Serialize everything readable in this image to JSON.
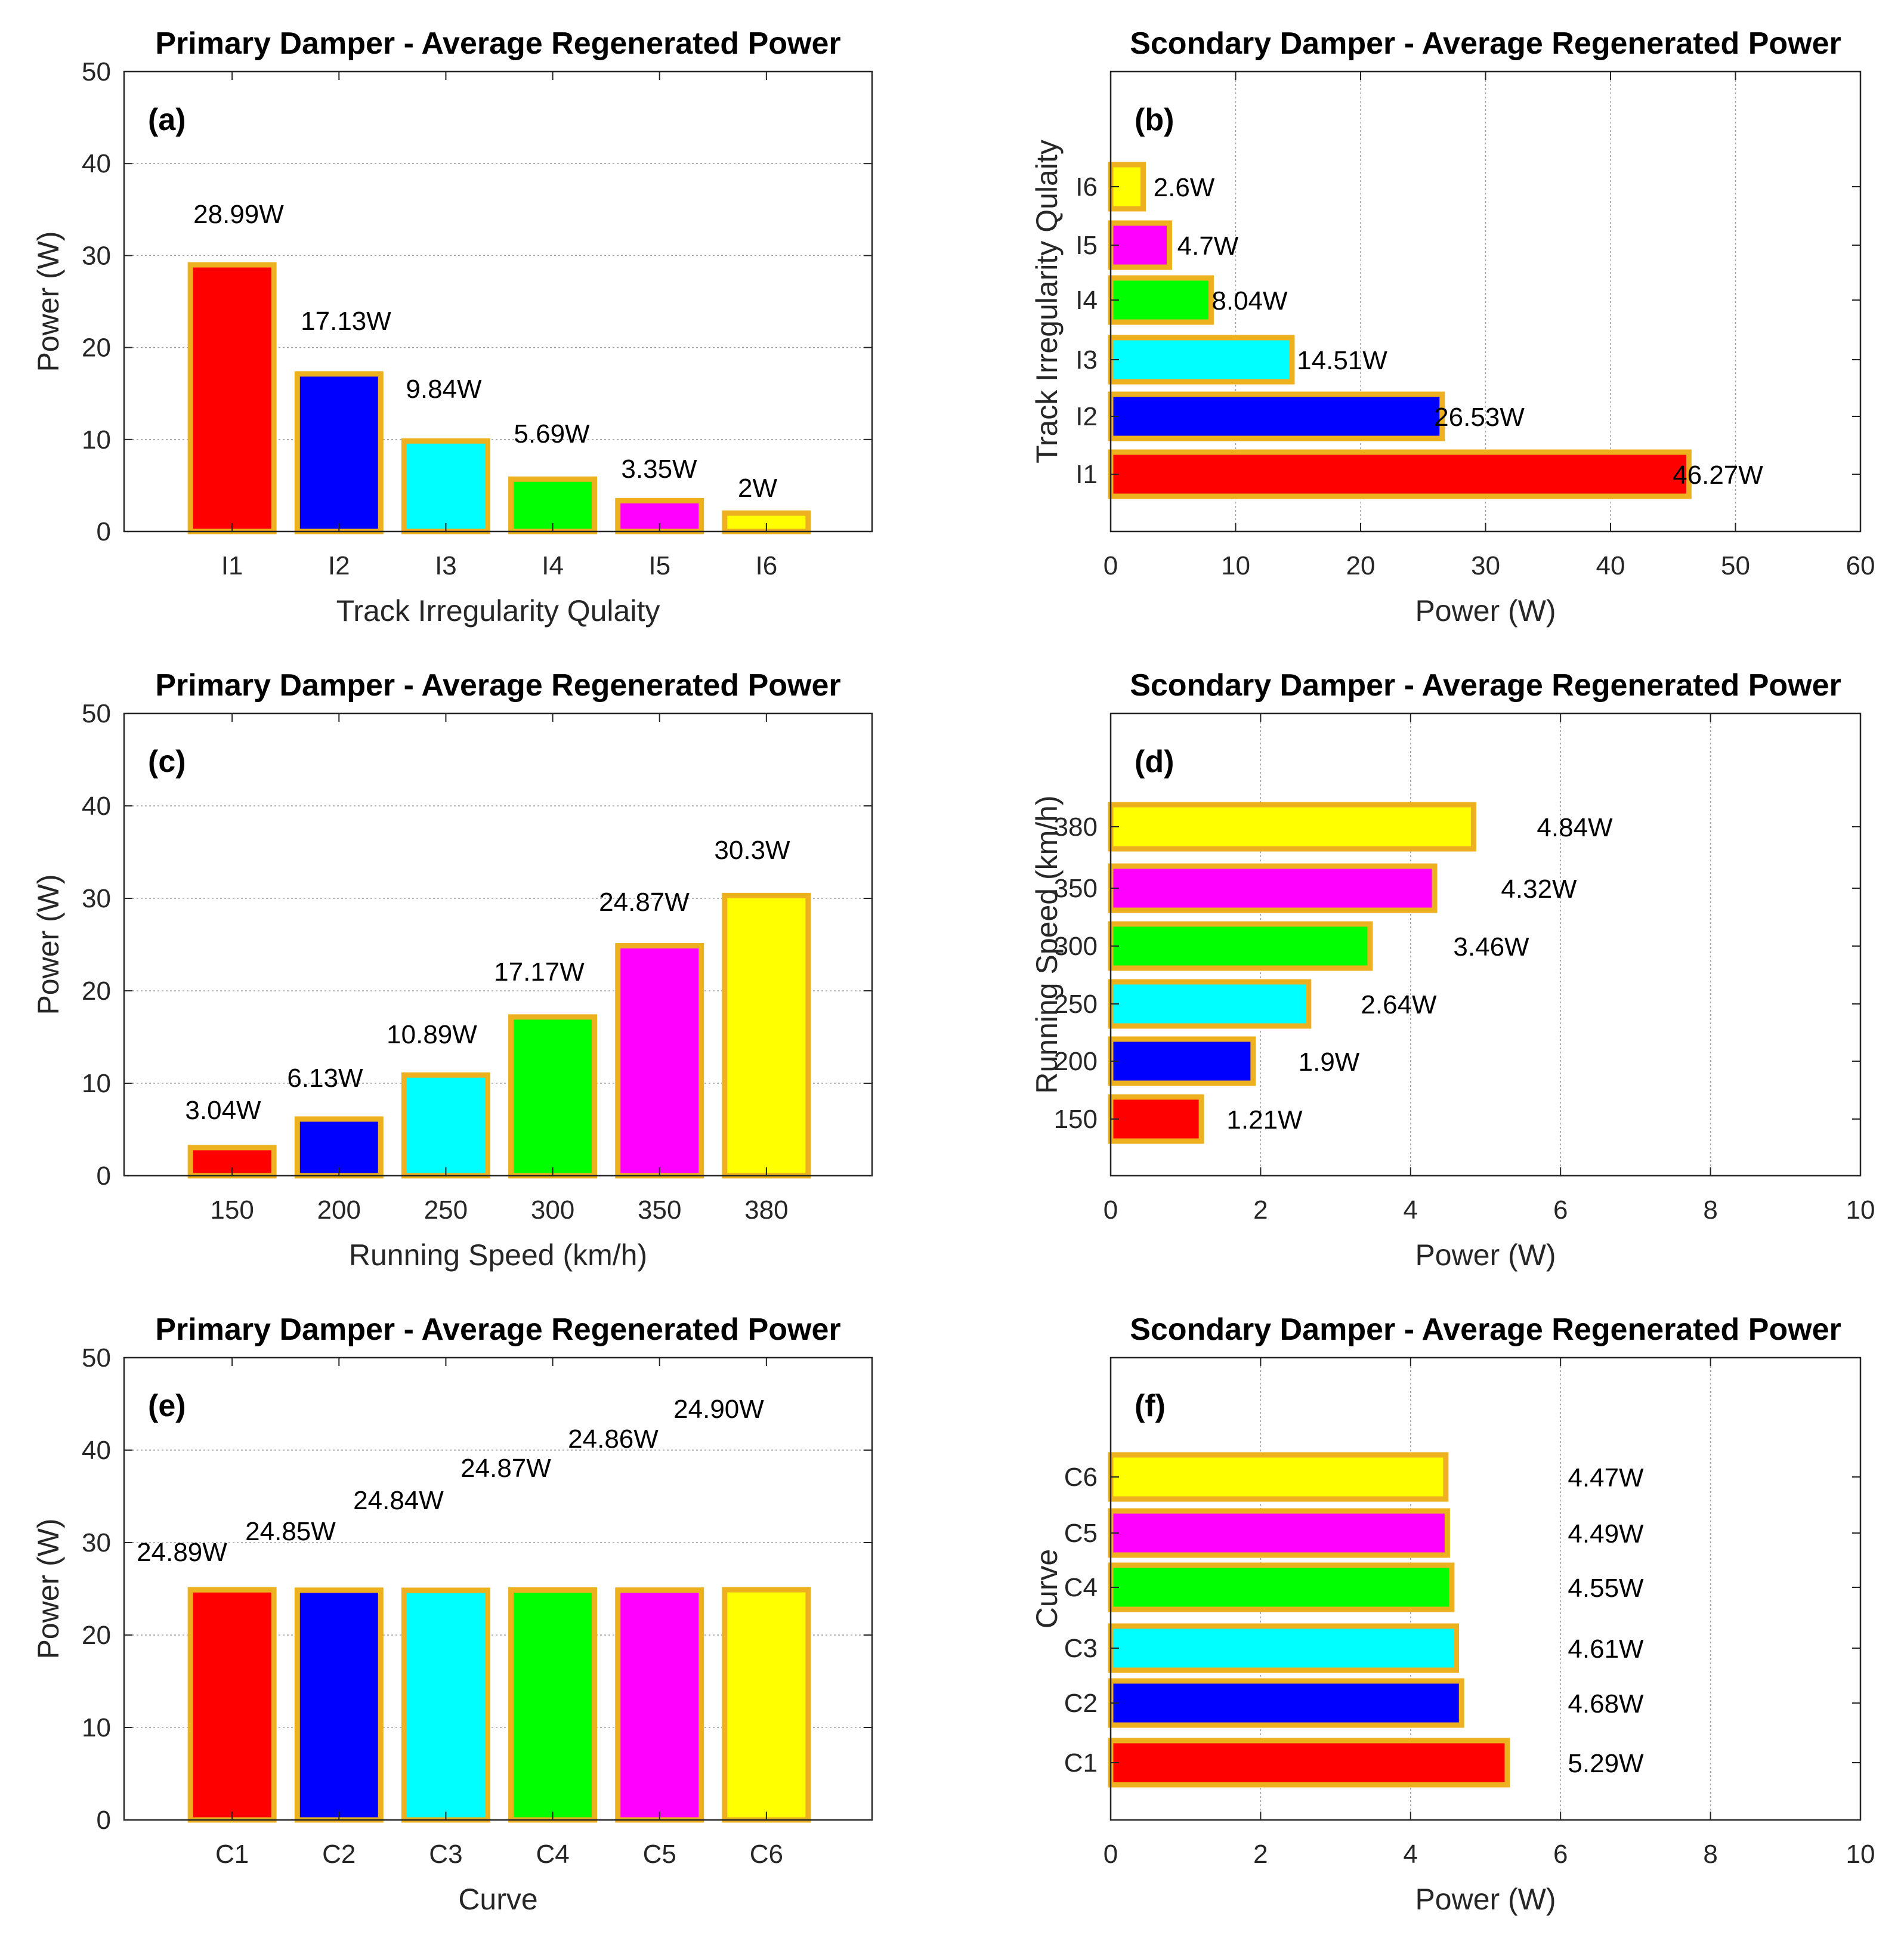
{
  "colors": {
    "bar_edge": "#EDB120",
    "bar_fills": [
      "#FF0000",
      "#0000FF",
      "#00FFFF",
      "#00FF00",
      "#FF00FF",
      "#FFFF00"
    ],
    "grid": "#A0A0A0",
    "axis": "#262626"
  },
  "chart_data": [
    {
      "id": "a",
      "type": "bar",
      "orientation": "vertical",
      "title": "Primary Damper - Average Regenerated Power",
      "panel_label": "(a)",
      "categories": [
        "I1",
        "I2",
        "I3",
        "I4",
        "I5",
        "I6"
      ],
      "values": [
        28.99,
        17.13,
        9.84,
        5.69,
        3.35,
        2
      ],
      "data_labels": [
        "28.99W",
        "17.13W",
        "9.84W",
        "5.69W",
        "3.35W",
        "2W"
      ],
      "xlabel": "Track Irregularity Qulaity",
      "ylabel": "Power (W)",
      "ylim": [
        0,
        50
      ],
      "yticks": [
        "0",
        "10",
        "20",
        "30",
        "40",
        "50"
      ],
      "grid": "horizontal"
    },
    {
      "id": "b",
      "type": "bar",
      "orientation": "horizontal",
      "title": "Scondary Damper - Average Regenerated Power",
      "panel_label": "(b)",
      "categories": [
        "I1",
        "I2",
        "I3",
        "I4",
        "I5",
        "I6"
      ],
      "values": [
        46.27,
        26.53,
        14.51,
        8.04,
        4.7,
        2.6
      ],
      "data_labels": [
        "46.27W",
        "26.53W",
        "14.51W",
        "8.04W",
        "4.7W",
        "2.6W"
      ],
      "xlabel": "Power (W)",
      "ylabel": "Track Irregularity Qulaity",
      "xlim": [
        0,
        60
      ],
      "xticks": [
        "0",
        "10",
        "20",
        "30",
        "40",
        "50",
        "60"
      ],
      "grid": "vertical"
    },
    {
      "id": "c",
      "type": "bar",
      "orientation": "vertical",
      "title": "Primary Damper - Average Regenerated Power",
      "panel_label": "(c)",
      "categories": [
        "150",
        "200",
        "250",
        "300",
        "350",
        "380"
      ],
      "values": [
        3.04,
        6.13,
        10.89,
        17.17,
        24.87,
        30.3
      ],
      "data_labels": [
        "3.04W",
        "6.13W",
        "10.89W",
        "17.17W",
        "24.87W",
        "30.3W"
      ],
      "xlabel": "Running Speed (km/h)",
      "ylabel": "Power (W)",
      "ylim": [
        0,
        50
      ],
      "yticks": [
        "0",
        "10",
        "20",
        "30",
        "40",
        "50"
      ],
      "grid": "horizontal"
    },
    {
      "id": "d",
      "type": "bar",
      "orientation": "horizontal",
      "title": "Scondary Damper - Average Regenerated Power",
      "panel_label": "(d)",
      "categories": [
        "150",
        "200",
        "250",
        "300",
        "350",
        "380"
      ],
      "values": [
        1.21,
        1.9,
        2.64,
        3.46,
        4.32,
        4.84
      ],
      "data_labels": [
        "1.21W",
        "1.9W",
        "2.64W",
        "3.46W",
        "4.32W",
        "4.84W"
      ],
      "xlabel": "Power (W)",
      "ylabel": "Running Speed (km/h)",
      "xlim": [
        0,
        10
      ],
      "xticks": [
        "0",
        "2",
        "4",
        "6",
        "8",
        "10"
      ],
      "grid": "vertical"
    },
    {
      "id": "e",
      "type": "bar",
      "orientation": "vertical",
      "title": "Primary Damper - Average Regenerated Power",
      "panel_label": "(e)",
      "categories": [
        "C1",
        "C2",
        "C3",
        "C4",
        "C5",
        "C6"
      ],
      "values": [
        24.89,
        24.85,
        24.84,
        24.87,
        24.86,
        24.9
      ],
      "data_labels": [
        "24.89W",
        "24.85W",
        "24.84W",
        "24.87W",
        "24.86W",
        "24.90W"
      ],
      "xlabel": "Curve",
      "ylabel": "Power (W)",
      "ylim": [
        0,
        50
      ],
      "yticks": [
        "0",
        "10",
        "20",
        "30",
        "40",
        "50"
      ],
      "grid": "horizontal"
    },
    {
      "id": "f",
      "type": "bar",
      "orientation": "horizontal",
      "title": "Scondary Damper - Average Regenerated Power",
      "panel_label": "(f)",
      "categories": [
        "C1",
        "C2",
        "C3",
        "C4",
        "C5",
        "C6"
      ],
      "values": [
        5.29,
        4.68,
        4.61,
        4.55,
        4.49,
        4.47
      ],
      "data_labels": [
        "5.29W",
        "4.68W",
        "4.61W",
        "4.55W",
        "4.49W",
        "4.47W"
      ],
      "xlabel": "Power (W)",
      "ylabel": "Curve",
      "xlim": [
        0,
        10
      ],
      "xticks": [
        "0",
        "2",
        "4",
        "6",
        "8",
        "10"
      ],
      "grid": "vertical"
    }
  ]
}
